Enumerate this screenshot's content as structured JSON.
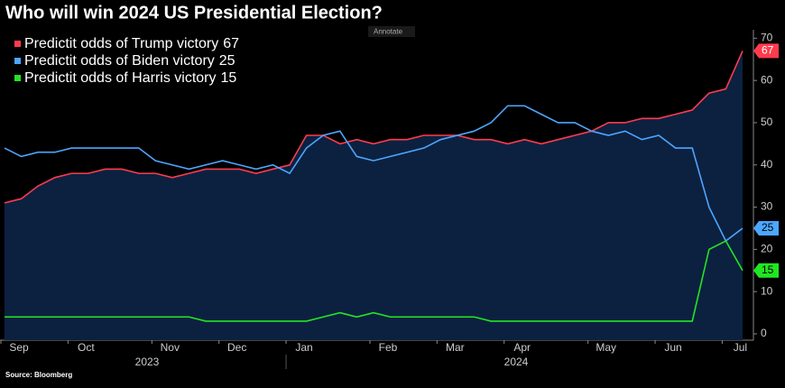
{
  "chart_data": {
    "type": "line",
    "title": "Who will win 2024 US Presidential Election?",
    "annotate_button": "Annotate",
    "source": "Source: Bloomberg",
    "categories": [
      "Sep",
      null,
      null,
      null,
      "Oct",
      null,
      null,
      null,
      null,
      "Nov",
      null,
      null,
      null,
      "Dec",
      null,
      null,
      null,
      "Jan",
      null,
      null,
      null,
      null,
      "Feb",
      null,
      null,
      null,
      "Mar",
      null,
      null,
      null,
      "Apr",
      null,
      null,
      null,
      null,
      "May",
      null,
      null,
      null,
      "Jun",
      null,
      null,
      null,
      "Jul",
      null
    ],
    "years": [
      "2023",
      "2024"
    ],
    "series": [
      {
        "name": "Predictit odds of Trump victory",
        "color": "#ff3b4e",
        "values": [
          31,
          32,
          35,
          37,
          38,
          38,
          39,
          39,
          38,
          38,
          37,
          38,
          39,
          39,
          39,
          38,
          39,
          40,
          47,
          47,
          45,
          46,
          45,
          46,
          46,
          47,
          47,
          47,
          46,
          46,
          45,
          46,
          45,
          46,
          47,
          48,
          50,
          50,
          51,
          51,
          52,
          53,
          57,
          58,
          67
        ]
      },
      {
        "name": "Predictit odds of Biden victory",
        "color": "#4da6ff",
        "values": [
          44,
          42,
          43,
          43,
          44,
          44,
          44,
          44,
          44,
          41,
          40,
          39,
          40,
          41,
          40,
          39,
          40,
          38,
          44,
          47,
          48,
          42,
          41,
          42,
          43,
          44,
          46,
          47,
          48,
          50,
          54,
          54,
          52,
          50,
          50,
          48,
          47,
          48,
          46,
          47,
          44,
          44,
          30,
          22,
          25
        ]
      },
      {
        "name": "Predictit odds of Harris victory",
        "color": "#22e622",
        "values": [
          4,
          4,
          4,
          4,
          4,
          4,
          4,
          4,
          4,
          4,
          4,
          4,
          3,
          3,
          3,
          3,
          3,
          3,
          3,
          4,
          5,
          4,
          5,
          4,
          4,
          4,
          4,
          4,
          4,
          3,
          3,
          3,
          3,
          3,
          3,
          3,
          3,
          3,
          3,
          3,
          3,
          3,
          20,
          22,
          15
        ]
      }
    ],
    "ylim": [
      -1.5,
      72
    ],
    "yticks": [
      0,
      10,
      20,
      30,
      40,
      50,
      60,
      70
    ],
    "area_color": "#0c2140"
  }
}
